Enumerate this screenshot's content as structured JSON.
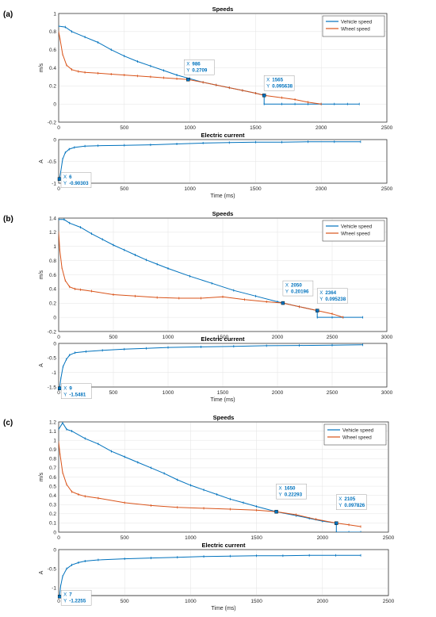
{
  "chart_data": [
    {
      "panel_label": "(a)",
      "type": "line",
      "title": "Speeds",
      "xlabel": "",
      "ylabel": "m/s",
      "xlim": [
        0,
        2500
      ],
      "ylim": [
        -0.2,
        1
      ],
      "xticks": [
        "0",
        "500",
        "1000",
        "1500",
        "2000",
        "2500"
      ],
      "yticks": [
        "-0.2",
        "0",
        "0.2",
        "0.4",
        "0.6",
        "0.8",
        "1"
      ],
      "grid": true,
      "legend_position": "top-right",
      "series": [
        {
          "name": "Vehicle speed",
          "color": "#0072BD",
          "x": [
            0,
            50,
            100,
            200,
            300,
            400,
            500,
            600,
            700,
            800,
            900,
            1000,
            1100,
            1200,
            1300,
            1400,
            1500,
            1565,
            1565,
            1700,
            1800,
            1900,
            2000,
            2100,
            2200,
            2290
          ],
          "y": [
            0.86,
            0.85,
            0.8,
            0.74,
            0.68,
            0.6,
            0.53,
            0.47,
            0.42,
            0.37,
            0.32,
            0.28,
            0.24,
            0.21,
            0.18,
            0.15,
            0.12,
            0.096,
            0.0,
            0.0,
            0.0,
            0.0,
            0.0,
            0.0,
            0.0,
            0.0
          ]
        },
        {
          "name": "Wheel speed",
          "color": "#D95319",
          "x": [
            0,
            10,
            30,
            60,
            100,
            150,
            200,
            300,
            400,
            500,
            600,
            700,
            800,
            900,
            986,
            1100,
            1200,
            1300,
            1400,
            1500,
            1565,
            1700,
            1800,
            1900,
            2000
          ],
          "y": [
            0.8,
            0.72,
            0.55,
            0.43,
            0.38,
            0.36,
            0.35,
            0.34,
            0.33,
            0.32,
            0.31,
            0.3,
            0.29,
            0.28,
            0.27,
            0.24,
            0.21,
            0.18,
            0.15,
            0.12,
            0.096,
            0.07,
            0.05,
            0.02,
            0.0
          ]
        }
      ],
      "datatips": [
        {
          "x_label": "X",
          "x_value": "986",
          "y_label": "Y",
          "y_value": "0.2709",
          "x": 986,
          "y": 0.2709
        },
        {
          "x_label": "X",
          "x_value": "1565",
          "y_label": "Y",
          "y_value": "0.095638",
          "x": 1565,
          "y": 0.095638
        }
      ]
    },
    {
      "panel_label": "",
      "type": "line",
      "title": "Electric current",
      "xlabel": "Time (ms)",
      "ylabel": "A",
      "xlim": [
        0,
        2500
      ],
      "ylim": [
        -1,
        0
      ],
      "xticks": [
        "0",
        "500",
        "1000",
        "1500",
        "2000",
        "2500"
      ],
      "yticks": [
        "-1",
        "-0.5",
        "0"
      ],
      "grid": true,
      "series": [
        {
          "name": "",
          "color": "#0072BD",
          "x": [
            6,
            15,
            30,
            50,
            80,
            120,
            200,
            300,
            500,
            700,
            900,
            1100,
            1300,
            1500,
            1700,
            1900,
            2100,
            2300
          ],
          "y": [
            -0.903,
            -0.75,
            -0.45,
            -0.3,
            -0.22,
            -0.18,
            -0.15,
            -0.14,
            -0.13,
            -0.12,
            -0.1,
            -0.08,
            -0.07,
            -0.06,
            -0.06,
            -0.05,
            -0.05,
            -0.05
          ]
        }
      ],
      "datatips": [
        {
          "x_label": "X",
          "x_value": "6",
          "y_label": "Y",
          "y_value": "-0.90303",
          "x": 6,
          "y": -0.90303
        }
      ]
    },
    {
      "panel_label": "(b)",
      "type": "line",
      "title": "Speeds",
      "xlabel": "",
      "ylabel": "m/s",
      "xlim": [
        0,
        3000
      ],
      "ylim": [
        -0.2,
        1.4
      ],
      "xticks": [
        "0",
        "500",
        "1000",
        "1500",
        "2000",
        "2500",
        "3000"
      ],
      "yticks": [
        "-0.2",
        "0",
        "0.2",
        "0.4",
        "0.6",
        "0.8",
        "1",
        "1.2",
        "1.4"
      ],
      "grid": true,
      "legend_position": "top-right",
      "series": [
        {
          "name": "Vehicle speed",
          "color": "#0072BD",
          "x": [
            0,
            50,
            100,
            200,
            300,
            400,
            500,
            600,
            700,
            800,
            900,
            1000,
            1200,
            1400,
            1600,
            1800,
            2000,
            2050,
            2200,
            2364,
            2364,
            2500,
            2600,
            2780
          ],
          "y": [
            1.38,
            1.38,
            1.33,
            1.27,
            1.18,
            1.1,
            1.02,
            0.95,
            0.88,
            0.81,
            0.75,
            0.69,
            0.58,
            0.48,
            0.38,
            0.3,
            0.22,
            0.20196,
            0.15,
            0.095,
            0.0,
            0.0,
            0.0,
            0.0
          ]
        },
        {
          "name": "Wheel speed",
          "color": "#D95319",
          "x": [
            0,
            10,
            30,
            60,
            100,
            150,
            200,
            300,
            500,
            700,
            900,
            1100,
            1300,
            1500,
            1700,
            1900,
            2050,
            2200,
            2364,
            2500,
            2600
          ],
          "y": [
            1.2,
            0.95,
            0.7,
            0.52,
            0.43,
            0.4,
            0.39,
            0.37,
            0.32,
            0.3,
            0.28,
            0.27,
            0.27,
            0.29,
            0.25,
            0.22,
            0.20196,
            0.15,
            0.095,
            0.05,
            0.0
          ]
        }
      ],
      "datatips": [
        {
          "x_label": "X",
          "x_value": "2050",
          "y_label": "Y",
          "y_value": "0.20196",
          "x": 2050,
          "y": 0.20196
        },
        {
          "x_label": "X",
          "x_value": "2364",
          "y_label": "Y",
          "y_value": "0.095238",
          "x": 2364,
          "y": 0.095238
        }
      ]
    },
    {
      "panel_label": "",
      "type": "line",
      "title": "Electric current",
      "xlabel": "Time (ms)",
      "ylabel": "A",
      "xlim": [
        0,
        3000
      ],
      "ylim": [
        -1.5,
        0
      ],
      "xticks": [
        "0",
        "500",
        "1000",
        "1500",
        "2000",
        "2500",
        "3000"
      ],
      "yticks": [
        "-1.5",
        "-1",
        "-0.5",
        "0"
      ],
      "grid": true,
      "series": [
        {
          "name": "",
          "color": "#0072BD",
          "x": [
            9,
            20,
            40,
            70,
            100,
            150,
            250,
            400,
            600,
            800,
            1000,
            1300,
            1600,
            1900,
            2200,
            2500,
            2780
          ],
          "y": [
            -1.548,
            -1.2,
            -0.8,
            -0.55,
            -0.4,
            -0.32,
            -0.28,
            -0.24,
            -0.2,
            -0.17,
            -0.14,
            -0.12,
            -0.1,
            -0.08,
            -0.07,
            -0.06,
            -0.05
          ]
        }
      ],
      "datatips": [
        {
          "x_label": "X",
          "x_value": "9",
          "y_label": "Y",
          "y_value": "-1.5481",
          "x": 9,
          "y": -1.5481
        }
      ]
    },
    {
      "panel_label": "(c)",
      "type": "line",
      "title": "Speeds",
      "xlabel": "",
      "ylabel": "m/s",
      "xlim": [
        0,
        2500
      ],
      "ylim": [
        0,
        1.2
      ],
      "xticks": [
        "0",
        "500",
        "1000",
        "1500",
        "2000",
        "2500"
      ],
      "yticks": [
        "0",
        "0.1",
        "0.2",
        "0.3",
        "0.4",
        "0.5",
        "0.6",
        "0.7",
        "0.8",
        "0.9",
        "1",
        "1.1",
        "1.2"
      ],
      "grid": true,
      "legend_position": "top-right",
      "series": [
        {
          "name": "Vehicle speed",
          "color": "#0072BD",
          "x": [
            0,
            30,
            60,
            100,
            200,
            300,
            400,
            500,
            600,
            700,
            800,
            900,
            1000,
            1100,
            1200,
            1300,
            1400,
            1500,
            1650,
            1800,
            1900,
            2000,
            2105,
            2105,
            2200,
            2290
          ],
          "y": [
            1.12,
            1.19,
            1.12,
            1.1,
            1.02,
            0.96,
            0.88,
            0.82,
            0.76,
            0.7,
            0.64,
            0.57,
            0.51,
            0.46,
            0.41,
            0.36,
            0.32,
            0.28,
            0.22293,
            0.18,
            0.15,
            0.12,
            0.098,
            0.0,
            0.0,
            0.0
          ]
        },
        {
          "name": "Wheel speed",
          "color": "#D95319",
          "x": [
            0,
            10,
            30,
            60,
            100,
            150,
            200,
            300,
            500,
            700,
            900,
            1100,
            1300,
            1500,
            1650,
            1800,
            1950,
            2105,
            2200,
            2290
          ],
          "y": [
            0.98,
            0.85,
            0.65,
            0.52,
            0.44,
            0.41,
            0.39,
            0.37,
            0.32,
            0.29,
            0.27,
            0.26,
            0.25,
            0.24,
            0.22293,
            0.19,
            0.14,
            0.098,
            0.08,
            0.06
          ]
        }
      ],
      "datatips": [
        {
          "x_label": "X",
          "x_value": "1650",
          "y_label": "Y",
          "y_value": "0.22293",
          "x": 1650,
          "y": 0.22293
        },
        {
          "x_label": "X",
          "x_value": "2105",
          "y_label": "Y",
          "y_value": "0.097826",
          "x": 2105,
          "y": 0.097826
        }
      ]
    },
    {
      "panel_label": "",
      "type": "line",
      "title": "Electric current",
      "xlabel": "Time (ms)",
      "ylabel": "A",
      "xlim": [
        0,
        2500
      ],
      "ylim": [
        -1.2,
        0
      ],
      "xticks": [
        "0",
        "500",
        "1000",
        "1500",
        "2000",
        "2500"
      ],
      "yticks": [
        "-1",
        "-0.5",
        "0"
      ],
      "ytick_values": [
        -1,
        -0.5,
        0
      ],
      "grid": true,
      "series": [
        {
          "name": "",
          "color": "#0072BD",
          "x": [
            7,
            15,
            30,
            60,
            100,
            150,
            200,
            300,
            500,
            700,
            900,
            1100,
            1300,
            1500,
            1700,
            1900,
            2100,
            2290
          ],
          "y": [
            -1.2255,
            -0.95,
            -0.7,
            -0.5,
            -0.4,
            -0.34,
            -0.3,
            -0.27,
            -0.24,
            -0.22,
            -0.2,
            -0.18,
            -0.17,
            -0.16,
            -0.16,
            -0.15,
            -0.15,
            -0.15
          ]
        }
      ],
      "datatips": [
        {
          "x_label": "X",
          "x_value": "7",
          "y_label": "Y",
          "y_value": "-1.2255",
          "x": 7,
          "y": -1.2255
        }
      ]
    }
  ]
}
